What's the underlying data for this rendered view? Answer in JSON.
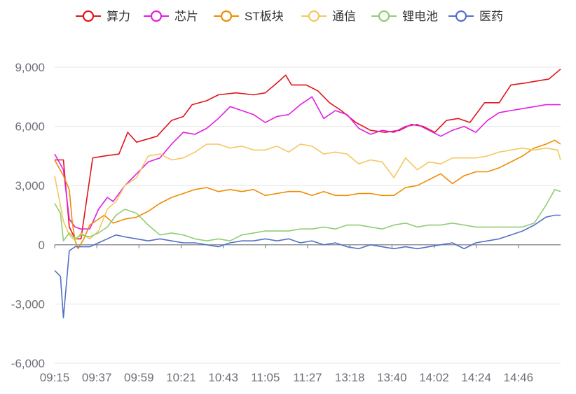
{
  "chart_data": {
    "type": "line",
    "title": "",
    "xlabel": "",
    "ylabel": "",
    "ylim": [
      -6000,
      9000
    ],
    "yticks": [
      -6000,
      -3000,
      0,
      3000,
      6000,
      9000
    ],
    "ytick_labels": [
      "-6,000",
      "-3,000",
      "0",
      "3,000",
      "6,000",
      "9,000"
    ],
    "xtick_labels": [
      "09:15",
      "09:37",
      "09:59",
      "10:21",
      "10:43",
      "11:05",
      "11:27",
      "13:18",
      "13:40",
      "14:02",
      "14:24",
      "14:46"
    ],
    "grid": "horizontal",
    "legend_position": "top",
    "series": [
      {
        "name": "算力",
        "color": "#e0141c",
        "points": [
          [
            0,
            4300
          ],
          [
            3,
            4300
          ],
          [
            5,
            900
          ],
          [
            7,
            300
          ],
          [
            9,
            300
          ],
          [
            13,
            4400
          ],
          [
            17,
            4500
          ],
          [
            22,
            4600
          ],
          [
            25,
            5700
          ],
          [
            28,
            5200
          ],
          [
            35,
            5500
          ],
          [
            40,
            6300
          ],
          [
            44,
            6500
          ],
          [
            47,
            7100
          ],
          [
            52,
            7300
          ],
          [
            56,
            7600
          ],
          [
            62,
            7700
          ],
          [
            68,
            7600
          ],
          [
            72,
            7700
          ],
          [
            76,
            8200
          ],
          [
            79,
            8600
          ],
          [
            81,
            8100
          ],
          [
            86,
            8100
          ],
          [
            90,
            7800
          ],
          [
            94,
            7200
          ],
          [
            98,
            6800
          ],
          [
            103,
            6200
          ],
          [
            108,
            5800
          ],
          [
            113,
            5700
          ],
          [
            118,
            5800
          ],
          [
            122,
            6100
          ],
          [
            126,
            6000
          ],
          [
            130,
            5700
          ],
          [
            134,
            6300
          ],
          [
            138,
            6400
          ],
          [
            142,
            6200
          ],
          [
            147,
            7200
          ],
          [
            152,
            7200
          ],
          [
            156,
            8100
          ],
          [
            161,
            8200
          ],
          [
            165,
            8300
          ],
          [
            169,
            8400
          ],
          [
            173,
            8900
          ]
        ]
      },
      {
        "name": "芯片",
        "color": "#e11ee1",
        "points": [
          [
            0,
            4600
          ],
          [
            3,
            3800
          ],
          [
            5,
            1300
          ],
          [
            7,
            900
          ],
          [
            9,
            800
          ],
          [
            12,
            800
          ],
          [
            15,
            1800
          ],
          [
            18,
            2400
          ],
          [
            20,
            2200
          ],
          [
            24,
            3000
          ],
          [
            28,
            3600
          ],
          [
            32,
            4200
          ],
          [
            36,
            4400
          ],
          [
            40,
            5100
          ],
          [
            44,
            5700
          ],
          [
            48,
            5600
          ],
          [
            52,
            5900
          ],
          [
            56,
            6400
          ],
          [
            60,
            7000
          ],
          [
            64,
            6800
          ],
          [
            68,
            6600
          ],
          [
            72,
            6200
          ],
          [
            76,
            6500
          ],
          [
            80,
            6600
          ],
          [
            84,
            7100
          ],
          [
            88,
            7500
          ],
          [
            92,
            6400
          ],
          [
            96,
            6800
          ],
          [
            100,
            6600
          ],
          [
            104,
            5900
          ],
          [
            108,
            5600
          ],
          [
            112,
            5800
          ],
          [
            116,
            5700
          ],
          [
            120,
            6000
          ],
          [
            124,
            6100
          ],
          [
            128,
            5800
          ],
          [
            132,
            5500
          ],
          [
            136,
            5800
          ],
          [
            140,
            6000
          ],
          [
            144,
            5700
          ],
          [
            148,
            6300
          ],
          [
            152,
            6700
          ],
          [
            156,
            6800
          ],
          [
            160,
            6900
          ],
          [
            164,
            7000
          ],
          [
            168,
            7100
          ],
          [
            173,
            7100
          ]
        ]
      },
      {
        "name": "ST板块",
        "color": "#ef8c00",
        "points": [
          [
            0,
            4300
          ],
          [
            3,
            3500
          ],
          [
            5,
            2800
          ],
          [
            6,
            1200
          ],
          [
            7,
            200
          ],
          [
            8,
            -200
          ],
          [
            10,
            300
          ],
          [
            12,
            1000
          ],
          [
            14,
            1200
          ],
          [
            17,
            1500
          ],
          [
            20,
            1100
          ],
          [
            24,
            1300
          ],
          [
            28,
            1400
          ],
          [
            32,
            1700
          ],
          [
            36,
            2100
          ],
          [
            40,
            2400
          ],
          [
            44,
            2600
          ],
          [
            48,
            2800
          ],
          [
            52,
            2900
          ],
          [
            56,
            2700
          ],
          [
            60,
            2800
          ],
          [
            64,
            2700
          ],
          [
            68,
            2800
          ],
          [
            72,
            2500
          ],
          [
            76,
            2600
          ],
          [
            80,
            2700
          ],
          [
            84,
            2700
          ],
          [
            88,
            2500
          ],
          [
            92,
            2700
          ],
          [
            96,
            2500
          ],
          [
            100,
            2500
          ],
          [
            104,
            2600
          ],
          [
            108,
            2600
          ],
          [
            112,
            2500
          ],
          [
            116,
            2500
          ],
          [
            120,
            2900
          ],
          [
            124,
            3000
          ],
          [
            128,
            3300
          ],
          [
            132,
            3600
          ],
          [
            136,
            3100
          ],
          [
            140,
            3500
          ],
          [
            144,
            3700
          ],
          [
            148,
            3700
          ],
          [
            152,
            3900
          ],
          [
            156,
            4200
          ],
          [
            160,
            4500
          ],
          [
            164,
            4900
          ],
          [
            168,
            5100
          ],
          [
            171,
            5300
          ],
          [
            173,
            5100
          ]
        ]
      },
      {
        "name": "通信",
        "color": "#f3c862",
        "points": [
          [
            0,
            3500
          ],
          [
            3,
            1200
          ],
          [
            5,
            500
          ],
          [
            7,
            200
          ],
          [
            9,
            600
          ],
          [
            12,
            300
          ],
          [
            15,
            700
          ],
          [
            18,
            1800
          ],
          [
            21,
            2200
          ],
          [
            24,
            3000
          ],
          [
            28,
            3400
          ],
          [
            32,
            4500
          ],
          [
            36,
            4600
          ],
          [
            40,
            4300
          ],
          [
            44,
            4400
          ],
          [
            48,
            4700
          ],
          [
            52,
            5100
          ],
          [
            56,
            5100
          ],
          [
            60,
            4900
          ],
          [
            64,
            5000
          ],
          [
            68,
            4800
          ],
          [
            72,
            4800
          ],
          [
            76,
            5000
          ],
          [
            80,
            4700
          ],
          [
            84,
            5100
          ],
          [
            88,
            5000
          ],
          [
            92,
            4600
          ],
          [
            96,
            4700
          ],
          [
            100,
            4600
          ],
          [
            104,
            4100
          ],
          [
            108,
            4300
          ],
          [
            112,
            4200
          ],
          [
            116,
            3400
          ],
          [
            120,
            4400
          ],
          [
            124,
            3800
          ],
          [
            128,
            4200
          ],
          [
            132,
            4100
          ],
          [
            136,
            4400
          ],
          [
            140,
            4400
          ],
          [
            144,
            4400
          ],
          [
            148,
            4500
          ],
          [
            152,
            4700
          ],
          [
            156,
            4800
          ],
          [
            160,
            4900
          ],
          [
            164,
            4800
          ],
          [
            168,
            4900
          ],
          [
            172,
            4800
          ],
          [
            173,
            4300
          ]
        ]
      },
      {
        "name": "锂电池",
        "color": "#91cc75",
        "points": [
          [
            0,
            2100
          ],
          [
            2,
            1600
          ],
          [
            3,
            200
          ],
          [
            5,
            600
          ],
          [
            7,
            300
          ],
          [
            9,
            500
          ],
          [
            12,
            400
          ],
          [
            15,
            600
          ],
          [
            18,
            900
          ],
          [
            21,
            1500
          ],
          [
            24,
            1800
          ],
          [
            28,
            1600
          ],
          [
            32,
            1000
          ],
          [
            36,
            500
          ],
          [
            40,
            600
          ],
          [
            44,
            500
          ],
          [
            48,
            300
          ],
          [
            52,
            200
          ],
          [
            56,
            300
          ],
          [
            60,
            200
          ],
          [
            64,
            500
          ],
          [
            68,
            600
          ],
          [
            72,
            700
          ],
          [
            76,
            700
          ],
          [
            80,
            700
          ],
          [
            84,
            800
          ],
          [
            88,
            800
          ],
          [
            92,
            900
          ],
          [
            96,
            800
          ],
          [
            100,
            1000
          ],
          [
            104,
            1000
          ],
          [
            108,
            900
          ],
          [
            112,
            800
          ],
          [
            116,
            1000
          ],
          [
            120,
            1100
          ],
          [
            124,
            900
          ],
          [
            128,
            1000
          ],
          [
            132,
            1000
          ],
          [
            136,
            1100
          ],
          [
            140,
            1000
          ],
          [
            144,
            900
          ],
          [
            148,
            900
          ],
          [
            152,
            900
          ],
          [
            156,
            900
          ],
          [
            160,
            900
          ],
          [
            164,
            1100
          ],
          [
            168,
            2000
          ],
          [
            171,
            2800
          ],
          [
            173,
            2700
          ]
        ]
      },
      {
        "name": "医药",
        "color": "#5470c6",
        "points": [
          [
            0,
            -1300
          ],
          [
            2,
            -1600
          ],
          [
            3,
            -3700
          ],
          [
            5,
            -300
          ],
          [
            7,
            -100
          ],
          [
            9,
            -100
          ],
          [
            12,
            -100
          ],
          [
            15,
            100
          ],
          [
            18,
            300
          ],
          [
            21,
            500
          ],
          [
            24,
            400
          ],
          [
            28,
            300
          ],
          [
            32,
            200
          ],
          [
            36,
            300
          ],
          [
            40,
            200
          ],
          [
            44,
            100
          ],
          [
            48,
            100
          ],
          [
            52,
            0
          ],
          [
            56,
            -100
          ],
          [
            60,
            100
          ],
          [
            64,
            200
          ],
          [
            68,
            200
          ],
          [
            72,
            300
          ],
          [
            76,
            200
          ],
          [
            80,
            300
          ],
          [
            84,
            100
          ],
          [
            88,
            200
          ],
          [
            92,
            0
          ],
          [
            96,
            100
          ],
          [
            100,
            -100
          ],
          [
            104,
            -200
          ],
          [
            108,
            0
          ],
          [
            112,
            -100
          ],
          [
            116,
            -200
          ],
          [
            120,
            -100
          ],
          [
            124,
            -200
          ],
          [
            128,
            -100
          ],
          [
            132,
            0
          ],
          [
            136,
            100
          ],
          [
            140,
            -200
          ],
          [
            144,
            100
          ],
          [
            148,
            200
          ],
          [
            152,
            300
          ],
          [
            156,
            500
          ],
          [
            160,
            700
          ],
          [
            164,
            1000
          ],
          [
            168,
            1400
          ],
          [
            171,
            1500
          ],
          [
            173,
            1500
          ]
        ]
      }
    ]
  }
}
